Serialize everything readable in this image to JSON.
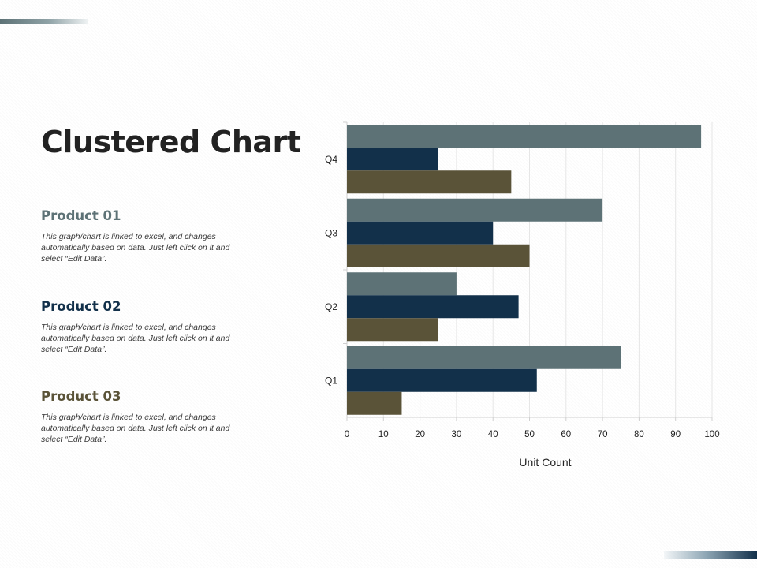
{
  "colors": {
    "product_01": "#5d7276",
    "product_02": "#12304a",
    "product_03": "#5a5338"
  },
  "slide": {
    "title": "Clustered Chart"
  },
  "products": [
    {
      "name": "Product 01",
      "description": "This graph/chart is linked to excel, and changes automatically based on data. Just left click on it and select “Edit Data”."
    },
    {
      "name": "Product 02",
      "description": "This graph/chart is linked to excel, and changes automatically based on data. Just left click on it and select “Edit Data”."
    },
    {
      "name": "Product 03",
      "description": "This graph/chart is linked to excel, and changes automatically based on data. Just left click on it and select “Edit Data”."
    }
  ],
  "chart_data": {
    "type": "bar",
    "orientation": "horizontal",
    "title": "",
    "xlabel": "Unit Count",
    "ylabel": "",
    "xlim": [
      0,
      100
    ],
    "xticks": [
      0,
      10,
      20,
      30,
      40,
      50,
      60,
      70,
      80,
      90,
      100
    ],
    "grid": true,
    "categories": [
      "Q1",
      "Q2",
      "Q3",
      "Q4"
    ],
    "series": [
      {
        "name": "Product 01",
        "values": [
          75,
          30,
          70,
          97
        ]
      },
      {
        "name": "Product 02",
        "values": [
          52,
          47,
          40,
          25
        ]
      },
      {
        "name": "Product 03",
        "values": [
          15,
          25,
          50,
          45
        ]
      }
    ]
  }
}
